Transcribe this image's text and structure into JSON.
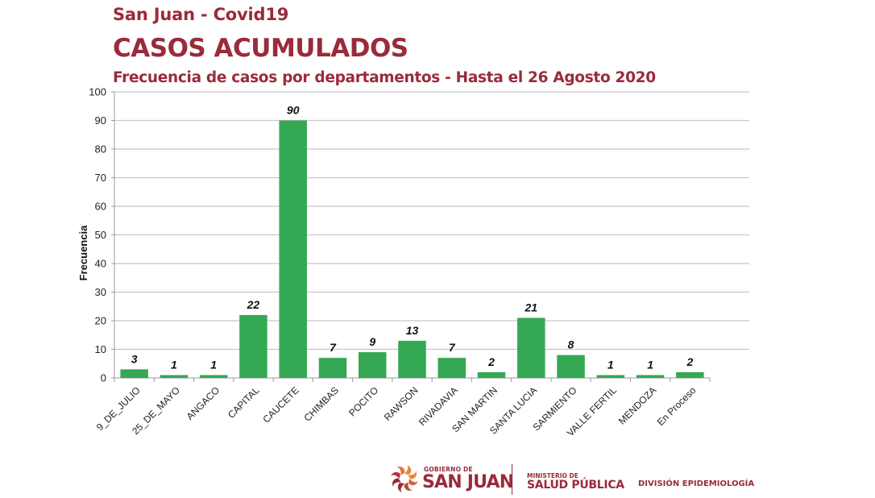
{
  "header": {
    "line1": "San Juan - Covid19",
    "line2": "CASOS ACUMULADOS",
    "line3": "Frecuencia de casos por departamentos - Hasta el 26 Agosto 2020"
  },
  "colors": {
    "brand": "#9a2b3a",
    "bar": "#34a853",
    "grid": "#c8c8c8",
    "logo_orange": "#e8833a"
  },
  "chart_data": {
    "type": "bar",
    "title": "Frecuencia de casos por departamentos - Hasta el 26 Agosto 2020",
    "xlabel": "",
    "ylabel": "Frecuencia",
    "ylim": [
      0,
      100
    ],
    "yticks": [
      0,
      10,
      20,
      30,
      40,
      50,
      60,
      70,
      80,
      90,
      100
    ],
    "grid": true,
    "legend": "none",
    "categories": [
      "9_DE_JULIO",
      "25_DE_MAYO",
      "ANGACO",
      "CAPITAL",
      "CAUCETE",
      "CHIMBAS",
      "POCITO",
      "RAWSON",
      "RIVADAVIA",
      "SAN MARTIN",
      "SANTA LUCIA",
      "SARMIENTO",
      "VALLE FERTIL",
      "MENDOZA",
      "En Proceso"
    ],
    "values": [
      3,
      1,
      1,
      22,
      90,
      7,
      9,
      13,
      7,
      2,
      21,
      8,
      1,
      1,
      2
    ]
  },
  "footer": {
    "gov_small": "GOBIERNO DE",
    "gov_big": "SAN JUAN",
    "ministry_small": "MINISTERIO DE",
    "ministry_big": "SALUD PÚBLICA",
    "division": "DIVISIÓN EPIDEMIOLOGÍA",
    "logo_icon": "san-juan-sun-logo"
  }
}
